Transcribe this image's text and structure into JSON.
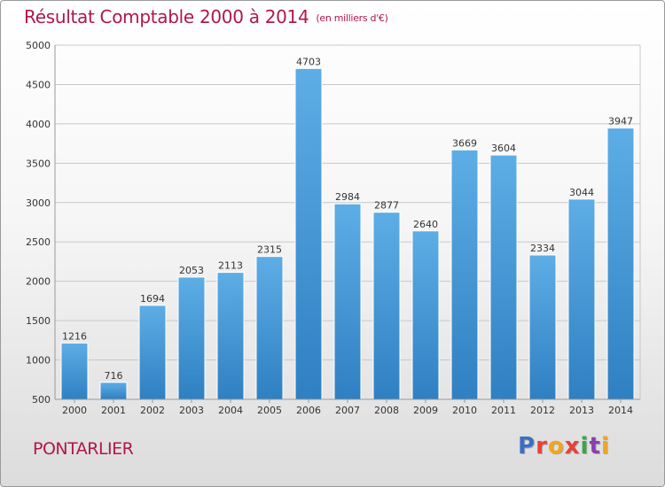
{
  "header": {
    "title": "Résultat Comptable 2000 à 2014",
    "unit": "(en milliers d'€)"
  },
  "footer": {
    "city": "PONTARLIER",
    "logo": "Proxiti",
    "logo_colors": [
      "#3a6fc4",
      "#e8403a",
      "#f2a51c",
      "#e8403a",
      "#3aa648",
      "#8a3fb0",
      "#f2a51c"
    ]
  },
  "colors": {
    "accent": "#b0174a",
    "bar_top": "#5dade6",
    "bar_bottom": "#2f80c2"
  },
  "chart_data": {
    "type": "bar",
    "title": "Résultat Comptable 2000 à 2014",
    "subtitle": "(en milliers d'€)",
    "categories": [
      "2000",
      "2001",
      "2002",
      "2003",
      "2004",
      "2005",
      "2006",
      "2007",
      "2008",
      "2009",
      "2010",
      "2011",
      "2012",
      "2013",
      "2014"
    ],
    "values": [
      1216,
      716,
      1694,
      2053,
      2113,
      2315,
      4703,
      2984,
      2877,
      2640,
      3669,
      3604,
      2334,
      3044,
      3947
    ],
    "ylim": [
      500,
      5000
    ],
    "yticks": [
      500,
      1000,
      1500,
      2000,
      2500,
      3000,
      3500,
      4000,
      4500,
      5000
    ],
    "grid": true,
    "data_labels": true
  }
}
